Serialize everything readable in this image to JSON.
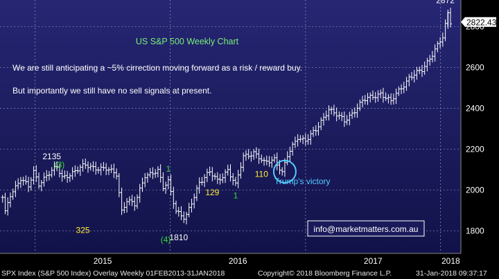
{
  "chart_data": {
    "type": "ohlc",
    "title": "US S&P 500 Weekly Chart",
    "annotations": {
      "line1": "We are still anticipating a ~5% cirrection moving forward as a risk / reward buy.",
      "line2": "But importantly we still have no sell signals at present.",
      "trump": "Trump's victory",
      "email": "info@marketmatters.com.au"
    },
    "labels": [
      {
        "text": "2135",
        "color": "#ffffff",
        "x": "2015-02-15",
        "y": 2150
      },
      {
        "text": "(3)",
        "color": "#33dd33",
        "x": "2015-03-08",
        "y": 2110
      },
      {
        "text": "325",
        "color": "#ffee33",
        "x": "2015-05-10",
        "y": 1790
      },
      {
        "text": "(4)",
        "color": "#33dd33",
        "x": "2015-12-20",
        "y": 1745
      },
      {
        "text": "1810",
        "color": "#ffffff",
        "x": "2016-01-24",
        "y": 1755
      },
      {
        "text": "1",
        "color": "#33dd33",
        "x": "2015-12-27",
        "y": 2090
      },
      {
        "text": "129",
        "color": "#ffee33",
        "x": "2016-04-24",
        "y": 1975
      },
      {
        "text": "1",
        "color": "#33dd33",
        "x": "2016-06-26",
        "y": 1960
      },
      {
        "text": "110",
        "color": "#ffee33",
        "x": "2016-09-04",
        "y": 2065
      },
      {
        "text": "2872",
        "color": "#ffffff",
        "x": "2018-01-14",
        "y": 2915
      }
    ],
    "last_price": "2822.43",
    "y_ticks": [
      1800,
      2000,
      2200,
      2400,
      2600,
      2800
    ],
    "ylim": [
      1690,
      2930
    ],
    "x_labels": [
      "2015",
      "2016",
      "2017",
      "2018"
    ],
    "x_start": "2014-09-28",
    "x_end": "2018-02-25",
    "circle_at": {
      "x": "2016-11-06",
      "y": 2090
    },
    "colors": {
      "background": "#1e1e66",
      "bars": "#ffffff",
      "title": "#77ee77",
      "circle": "#55ccff"
    }
  },
  "footer": {
    "left": "SPX Index (S&P 500 Index) Overlay  Weekly 01FEB2013-31JAN2018",
    "center": "Copyright© 2018 Bloomberg Finance L.P.",
    "right": "31-Jan-2018 09:37:17"
  }
}
